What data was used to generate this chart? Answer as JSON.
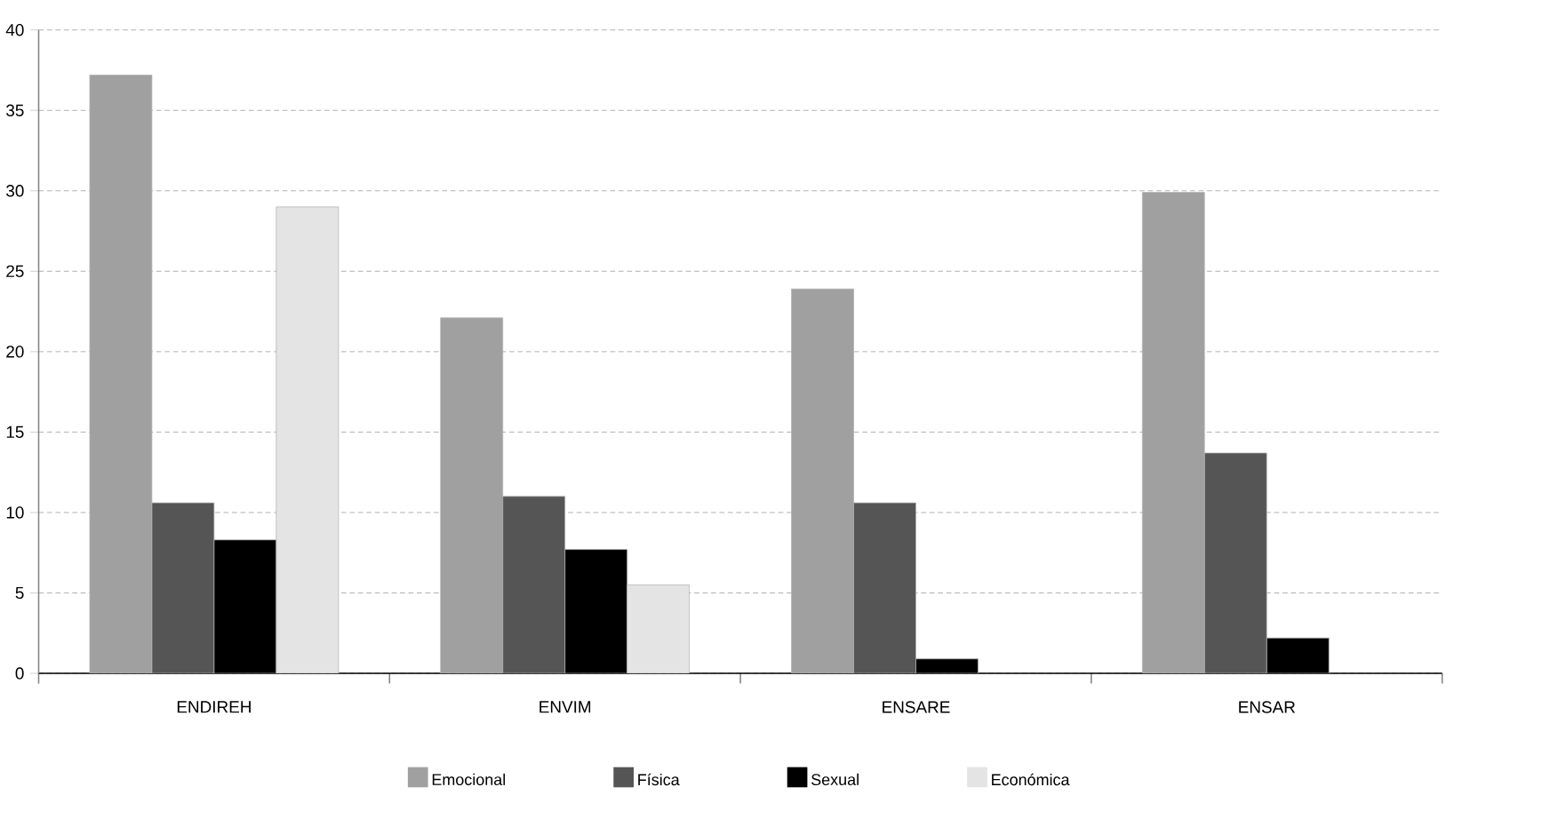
{
  "chart_data": {
    "type": "bar",
    "categories": [
      "ENDIREH",
      "ENVIM",
      "ENSARE",
      "ENSAR"
    ],
    "series": [
      {
        "name": "Emocional",
        "color": "#a0a0a0",
        "values": [
          37.2,
          22.1,
          23.9,
          29.9
        ]
      },
      {
        "name": "Física",
        "color": "#555555",
        "values": [
          10.6,
          11.0,
          10.6,
          13.7
        ]
      },
      {
        "name": "Sexual",
        "color": "#000000",
        "values": [
          8.3,
          7.7,
          0.9,
          2.2
        ]
      },
      {
        "name": "Económica",
        "color": "#e4e4e4",
        "values": [
          29.0,
          5.5,
          null,
          null
        ]
      }
    ],
    "ylim": [
      0,
      40
    ],
    "yticks": [
      0,
      5,
      10,
      15,
      20,
      25,
      30,
      35,
      40
    ],
    "grid": "y",
    "legend": "bottom"
  }
}
